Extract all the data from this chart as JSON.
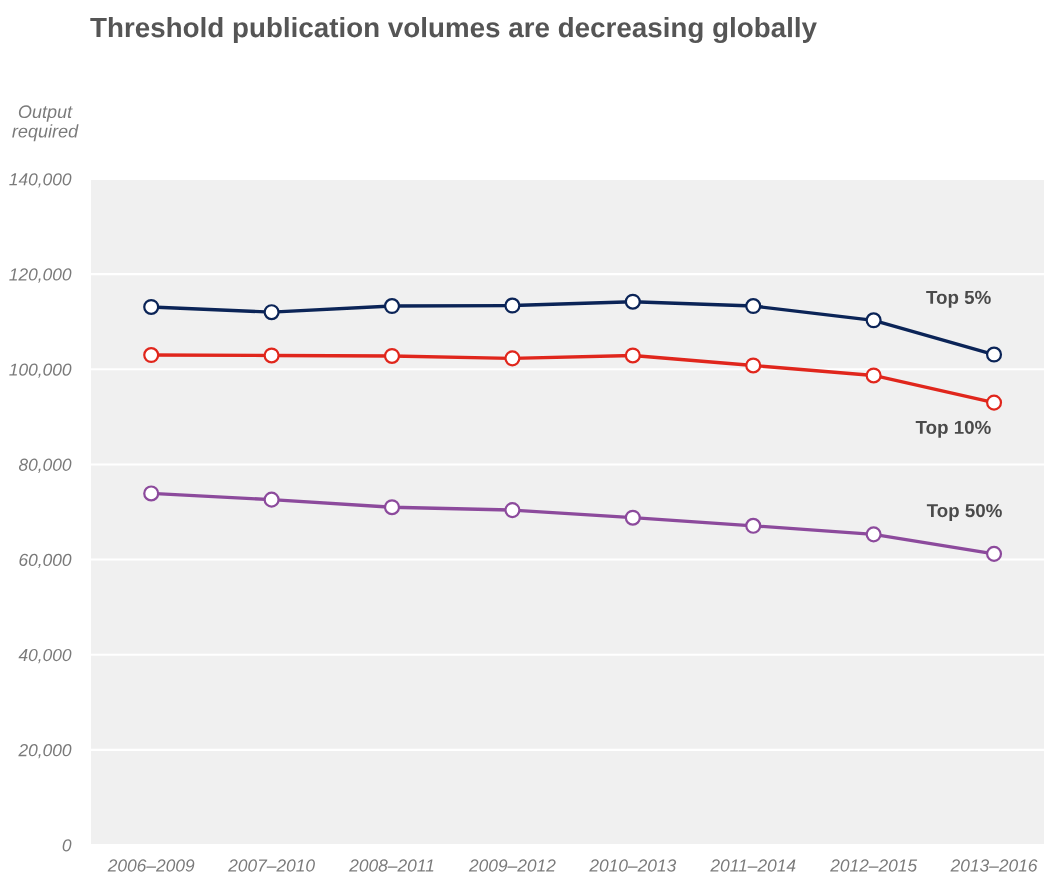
{
  "chart_data": {
    "type": "line",
    "title": "Threshold publication volumes are decreasing globally",
    "ylabel": "Output required",
    "categories": [
      "2006–2009",
      "2007–2010",
      "2008–2011",
      "2009–2012",
      "2010–2013",
      "2011–2014",
      "2012–2015",
      "2013–2016"
    ],
    "series": [
      {
        "name": "Top 5%",
        "color": "#0b2457",
        "values": [
          113100,
          112000,
          113300,
          113400,
          114200,
          113300,
          110300,
          103100
        ]
      },
      {
        "name": "Top 10%",
        "color": "#e0261c",
        "values": [
          103000,
          102900,
          102800,
          102300,
          102900,
          100800,
          98700,
          93000
        ]
      },
      {
        "name": "Top 50%",
        "color": "#8c4a9c",
        "values": [
          73900,
          72600,
          71000,
          70400,
          68800,
          67100,
          65300,
          61200
        ]
      }
    ],
    "ylim": [
      0,
      140000
    ],
    "yticks": [
      0,
      {
        "value": 20000,
        "label": "20,000"
      },
      {
        "value": 40000,
        "label": "40,000"
      },
      {
        "value": 60000,
        "label": "60,000"
      },
      {
        "value": 80000,
        "label": "80,000"
      },
      {
        "value": 100000,
        "label": "100,000"
      },
      {
        "value": 120000,
        "label": "120,000"
      },
      {
        "value": 140000,
        "label": "140,000"
      }
    ],
    "grid": "y",
    "marker": "circle",
    "line_style": "solid"
  }
}
